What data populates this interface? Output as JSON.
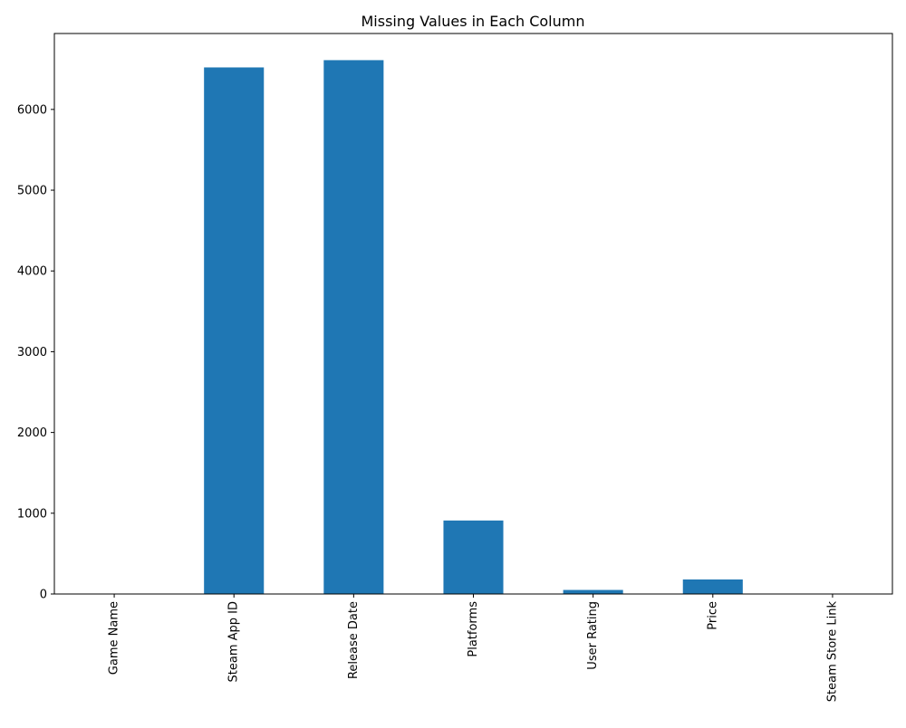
{
  "chart_data": {
    "type": "bar",
    "title": "Missing Values in Each Column",
    "xlabel": "",
    "ylabel": "",
    "categories": [
      "Game Name",
      "Steam App ID",
      "Release Date",
      "Platforms",
      "User Rating",
      "Price",
      "Steam Store Link"
    ],
    "values": [
      0,
      6520,
      6610,
      910,
      50,
      180,
      0
    ],
    "ylim": [
      0,
      6940
    ],
    "yticks": [
      0,
      1000,
      2000,
      3000,
      4000,
      5000,
      6000
    ],
    "bar_color": "#1f77b4",
    "grid": false,
    "legend": "none"
  }
}
